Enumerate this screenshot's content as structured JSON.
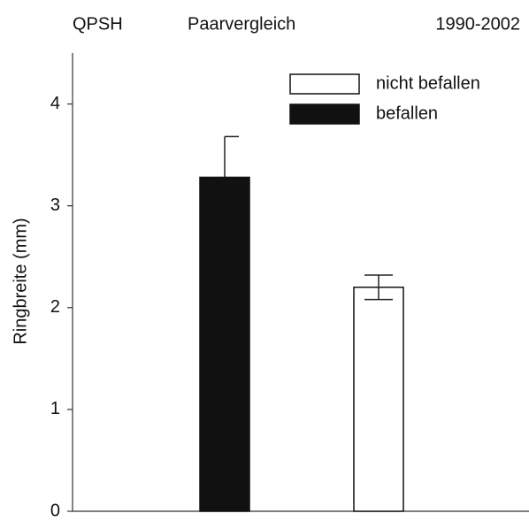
{
  "chart_data": {
    "type": "bar",
    "title": [
      "QPSH",
      "Paarvergleich",
      "1990-2002"
    ],
    "y_label": "Ringbreite  (mm)",
    "categories": [
      null,
      null
    ],
    "series": [
      {
        "name": "nicht befallen",
        "color": "#ffffff",
        "values": [
          null,
          2.2
        ],
        "errors": [
          null,
          0.12
        ]
      },
      {
        "name": "befallen",
        "color": "#111111",
        "values": [
          3.28,
          null
        ],
        "errors": [
          0.4,
          null
        ]
      }
    ],
    "ylim": [
      0,
      4.5
    ],
    "yticks": [
      0,
      1,
      2,
      3,
      4
    ],
    "grid": false,
    "legend": "top-right"
  }
}
